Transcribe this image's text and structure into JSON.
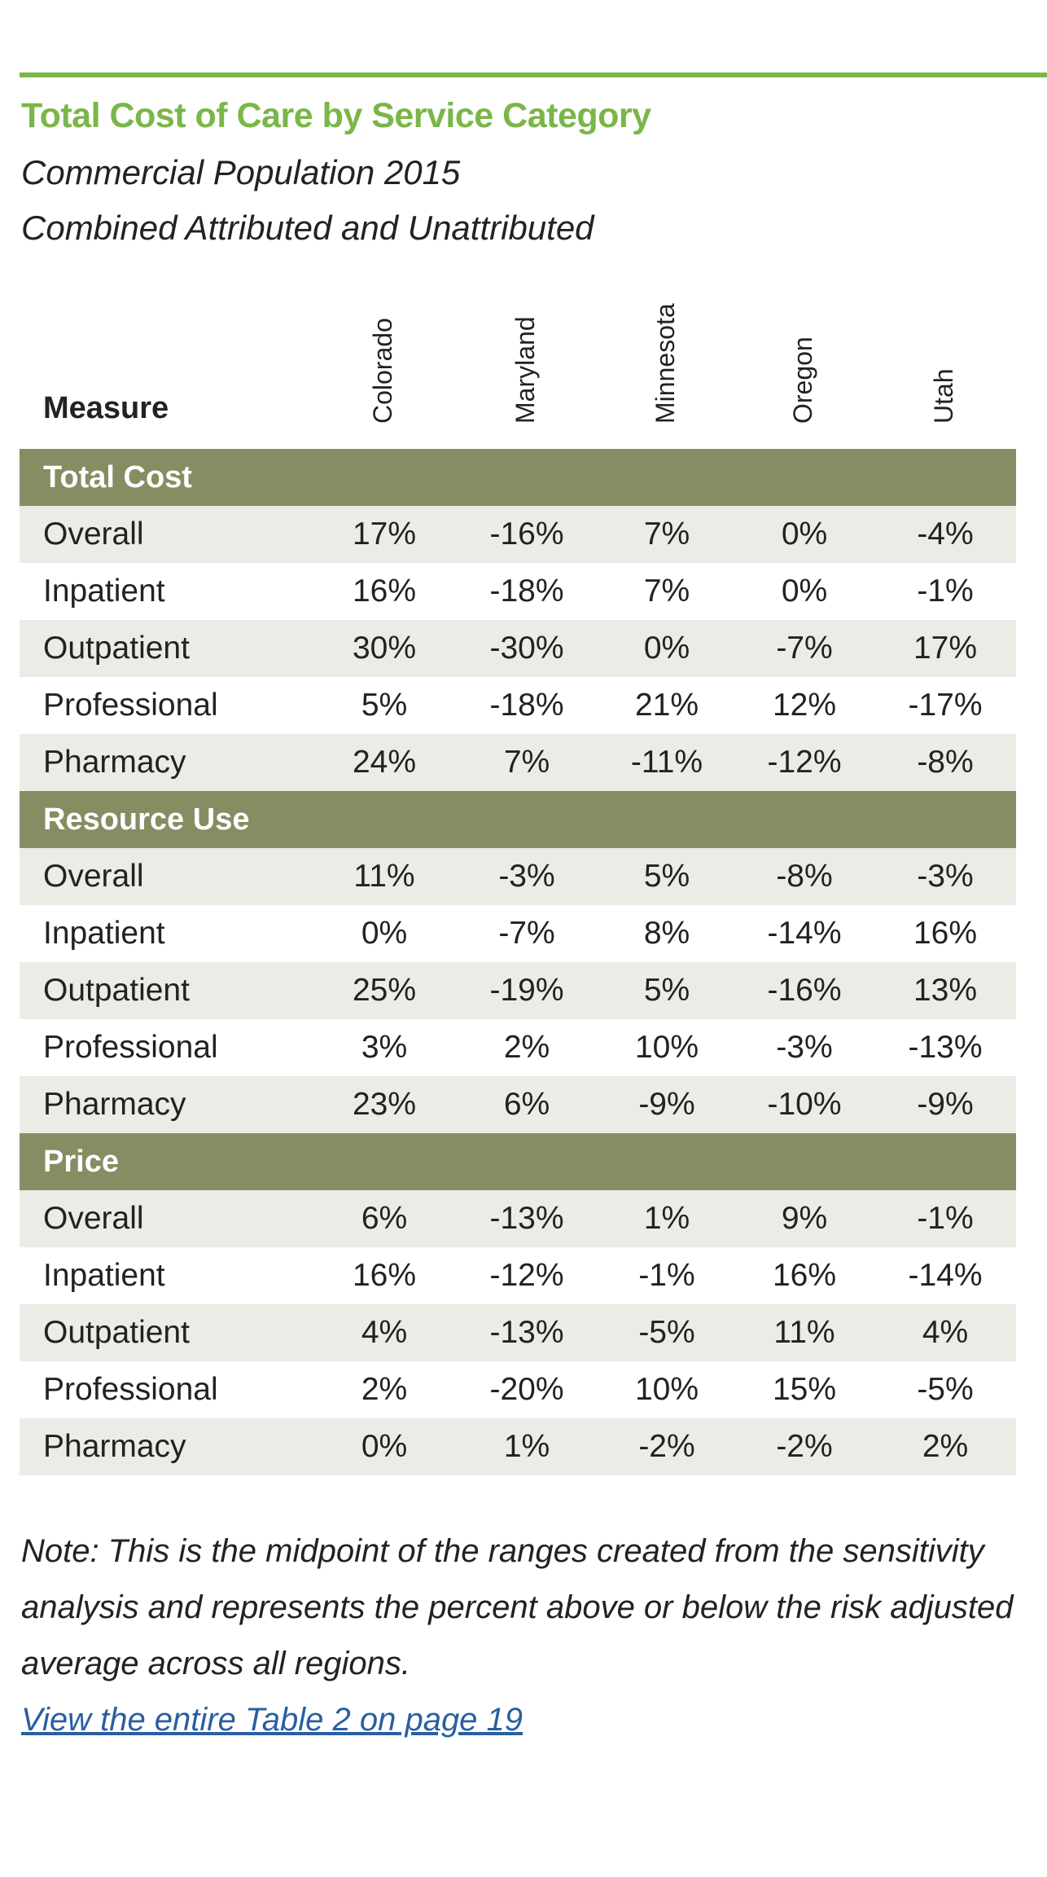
{
  "title": "Total Cost of Care by Service Category",
  "subtitle1": "Commercial Population 2015",
  "subtitle2": "Combined Attributed and Unattributed",
  "measure_header": "Measure",
  "columns": [
    "Colorado",
    "Maryland",
    "Minnesota",
    "Oregon",
    "Utah"
  ],
  "sections": [
    {
      "name": "Total Cost",
      "rows": [
        {
          "label": "Overall",
          "values": [
            "17%",
            "-16%",
            "7%",
            "0%",
            "-4%"
          ]
        },
        {
          "label": "Inpatient",
          "values": [
            "16%",
            "-18%",
            "7%",
            "0%",
            "-1%"
          ]
        },
        {
          "label": "Outpatient",
          "values": [
            "30%",
            "-30%",
            "0%",
            "-7%",
            "17%"
          ]
        },
        {
          "label": "Professional",
          "values": [
            "5%",
            "-18%",
            "21%",
            "12%",
            "-17%"
          ]
        },
        {
          "label": "Pharmacy",
          "values": [
            "24%",
            "7%",
            "-11%",
            "-12%",
            "-8%"
          ]
        }
      ]
    },
    {
      "name": "Resource Use",
      "rows": [
        {
          "label": "Overall",
          "values": [
            "11%",
            "-3%",
            "5%",
            "-8%",
            "-3%"
          ]
        },
        {
          "label": "Inpatient",
          "values": [
            "0%",
            "-7%",
            "8%",
            "-14%",
            "16%"
          ]
        },
        {
          "label": "Outpatient",
          "values": [
            "25%",
            "-19%",
            "5%",
            "-16%",
            "13%"
          ]
        },
        {
          "label": "Professional",
          "values": [
            "3%",
            "2%",
            "10%",
            "-3%",
            "-13%"
          ]
        },
        {
          "label": "Pharmacy",
          "values": [
            "23%",
            "6%",
            "-9%",
            "-10%",
            "-9%"
          ]
        }
      ]
    },
    {
      "name": "Price",
      "rows": [
        {
          "label": "Overall",
          "values": [
            "6%",
            "-13%",
            "1%",
            "9%",
            "-1%"
          ]
        },
        {
          "label": "Inpatient",
          "values": [
            "16%",
            "-12%",
            "-1%",
            "16%",
            "-14%"
          ]
        },
        {
          "label": "Outpatient",
          "values": [
            "4%",
            "-13%",
            "-5%",
            "11%",
            "4%"
          ]
        },
        {
          "label": "Professional",
          "values": [
            "2%",
            "-20%",
            "10%",
            "15%",
            "-5%"
          ]
        },
        {
          "label": "Pharmacy",
          "values": [
            "0%",
            "1%",
            "-2%",
            "-2%",
            "2%"
          ]
        }
      ]
    }
  ],
  "note": "Note: This is the midpoint of the ranges created from the sensitivity analysis and represents the percent above or below the risk adjusted average across all regions.",
  "link": "View the entire Table 2 on page 19",
  "colors": {
    "accent": "#7ab648",
    "section": "#878d63",
    "alt_row": "#ecebe6",
    "link": "#2a5fa0"
  }
}
